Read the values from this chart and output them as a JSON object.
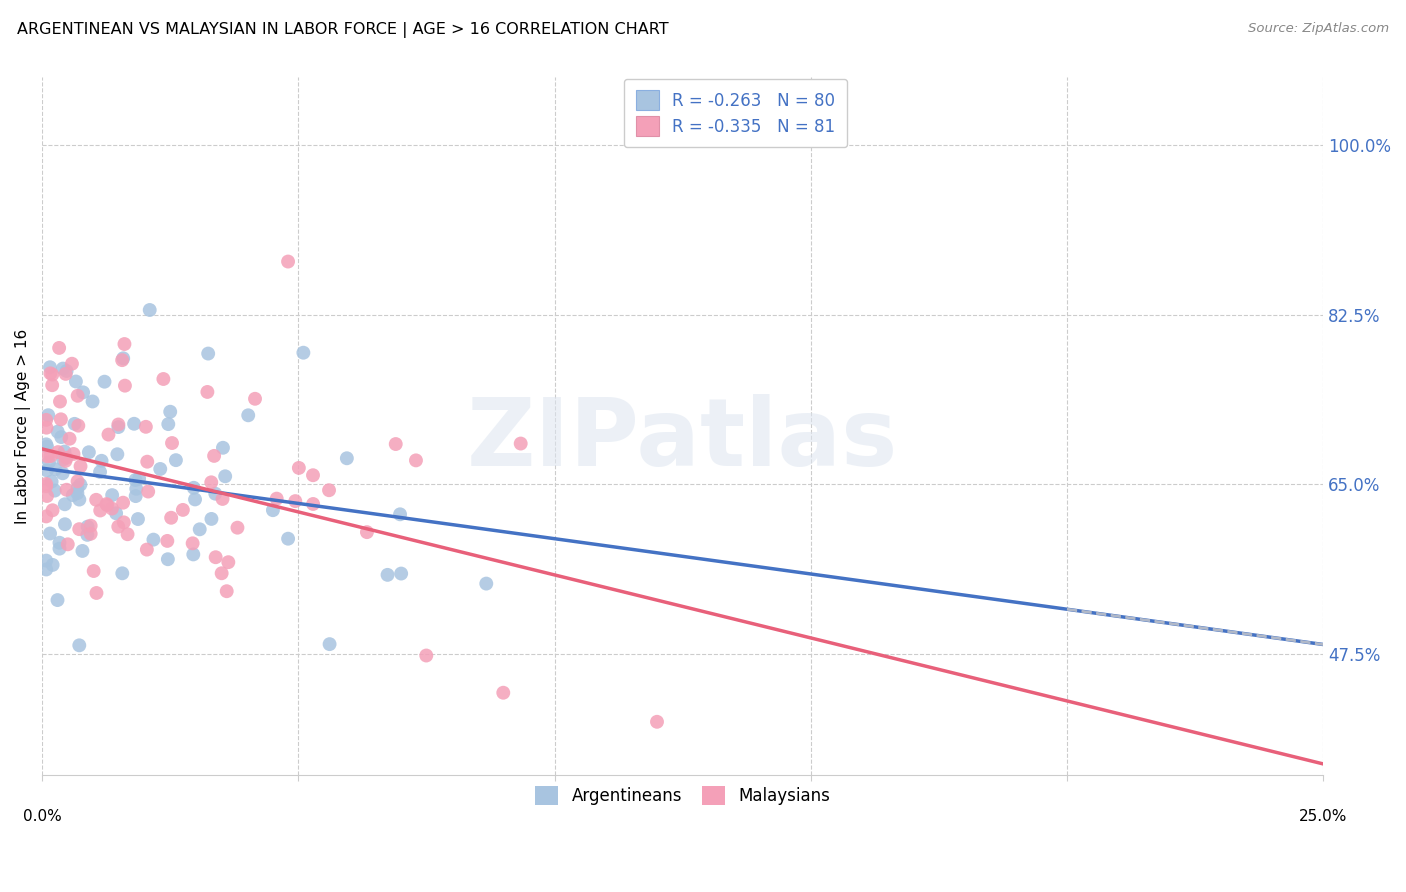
{
  "title": "ARGENTINEAN VS MALAYSIAN IN LABOR FORCE | AGE > 16 CORRELATION CHART",
  "source": "Source: ZipAtlas.com",
  "ylabel": "In Labor Force | Age > 16",
  "yticks": [
    47.5,
    65.0,
    82.5,
    100.0
  ],
  "xlim": [
    0.0,
    25.0
  ],
  "ylim": [
    35.0,
    107.0
  ],
  "argentinean_R": -0.263,
  "argentinean_N": 80,
  "malaysian_R": -0.335,
  "malaysian_N": 81,
  "argentinean_dot_color": "#a8c4e0",
  "malaysian_dot_color": "#f4a0b8",
  "trendline_arg_color": "#4472c4",
  "trendline_mal_color": "#e8607a",
  "trendline_dash_color": "#b0b8c8",
  "grid_color": "#cccccc",
  "right_tick_color": "#4472c4",
  "legend_label_arg": "Argentineans",
  "legend_label_mal": "Malaysians",
  "watermark_text": "ZIPatlas",
  "watermark_color": "#dde5f0"
}
